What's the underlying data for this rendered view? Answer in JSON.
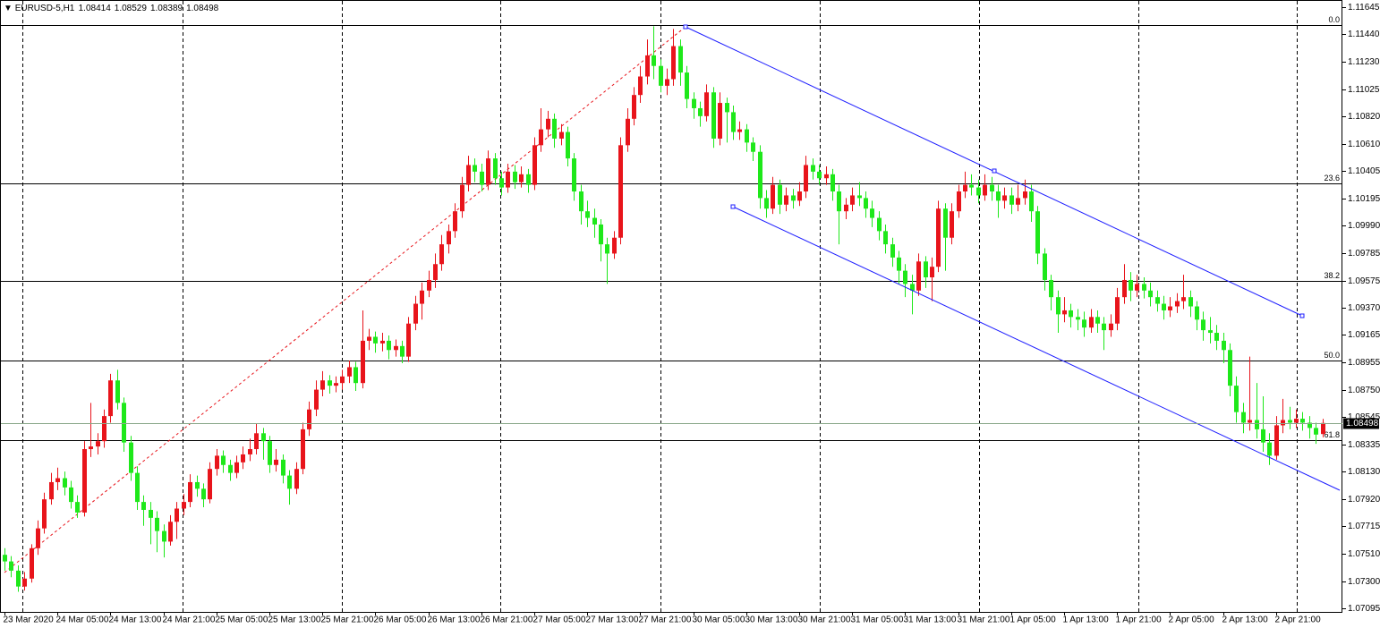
{
  "chart_data": {
    "type": "candlestick",
    "symbol": "EURUSD-5,H1",
    "bull_color": "#e8141b",
    "bear_color": "#1ee81a",
    "ylim": [
      1.07068,
      1.11699
    ],
    "yticks": [
      1.11645,
      {
        "value": 1.1144,
        "label": "1.11440"
      },
      {
        "value": 1.1123,
        "label": "1.11230"
      },
      1.11025,
      {
        "value": 1.1082,
        "label": "1.10820"
      },
      {
        "value": 1.1061,
        "label": "1.10610"
      },
      1.10405,
      1.10195,
      {
        "value": 1.0999,
        "label": "1.09990"
      },
      1.09785,
      1.09575,
      {
        "value": 1.0937,
        "label": "1.09370"
      },
      1.09165,
      1.08955,
      {
        "value": 1.0875,
        "label": "1.08750"
      },
      1.08545,
      1.08335,
      {
        "value": 1.0813,
        "label": "1.08130"
      },
      {
        "value": 1.0792,
        "label": "1.07920"
      },
      1.07715,
      {
        "value": 1.0751,
        "label": "1.07510"
      },
      {
        "value": 1.073,
        "label": "1.07300"
      },
      1.07095
    ],
    "fib_levels": [
      {
        "value": 1.1151,
        "label": "0.0"
      },
      {
        "value": 1.1031,
        "label": "23.6"
      },
      {
        "value": 1.0957,
        "label": "38.2"
      },
      {
        "value": 1.0897,
        "label": "50.0"
      },
      {
        "value": 1.0837,
        "label": "61.8"
      }
    ],
    "categories": [
      "23 Mar 2020",
      null,
      null,
      null,
      null,
      null,
      null,
      null,
      "24 Mar 05:00",
      null,
      null,
      null,
      null,
      null,
      null,
      null,
      "24 Mar 13:00",
      null,
      null,
      null,
      null,
      null,
      null,
      null,
      "24 Mar 21:00",
      null,
      null,
      null,
      null,
      null,
      null,
      null,
      "25 Mar 05:00",
      null,
      null,
      null,
      null,
      null,
      null,
      null,
      "25 Mar 13:00",
      null,
      null,
      null,
      null,
      null,
      null,
      null,
      "25 Mar 21:00",
      null,
      null,
      null,
      null,
      null,
      null,
      null,
      "26 Mar 05:00",
      null,
      null,
      null,
      null,
      null,
      null,
      null,
      "26 Mar 13:00",
      null,
      null,
      null,
      null,
      null,
      null,
      null,
      "26 Mar 21:00",
      null,
      null,
      null,
      null,
      null,
      null,
      null,
      "27 Mar 05:00",
      null,
      null,
      null,
      null,
      null,
      null,
      null,
      "27 Mar 13:00",
      null,
      null,
      null,
      null,
      null,
      null,
      null,
      "27 Mar 21:00",
      null,
      null,
      null,
      null,
      null,
      null,
      null,
      "30 Mar 05:00",
      null,
      null,
      null,
      null,
      null,
      null,
      null,
      "30 Mar 13:00",
      null,
      null,
      null,
      null,
      null,
      null,
      null,
      "30 Mar 21:00",
      null,
      null,
      null,
      null,
      null,
      null,
      null,
      "31 Mar 05:00",
      null,
      null,
      null,
      null,
      null,
      null,
      null,
      "31 Mar 13:00",
      null,
      null,
      null,
      null,
      null,
      null,
      null,
      "31 Mar 21:00",
      null,
      null,
      null,
      null,
      null,
      null,
      null,
      "1 Apr 05:00",
      null,
      null,
      null,
      null,
      null,
      null,
      null,
      "1 Apr 13:00",
      null,
      null,
      null,
      null,
      null,
      null,
      null,
      "1 Apr 21:00",
      null,
      null,
      null,
      null,
      null,
      null,
      null,
      "2 Apr 05:00",
      null,
      null,
      null,
      null,
      null,
      null,
      null,
      "2 Apr 13:00",
      null,
      null,
      null,
      null,
      null,
      null,
      null,
      "2 Apr 21:00",
      null,
      null,
      null,
      null,
      null,
      null,
      null
    ],
    "ohlc": [
      [
        1.075,
        1.0755,
        1.0738,
        1.0745
      ],
      [
        1.0745,
        1.0749,
        1.0733,
        1.0738
      ],
      [
        1.0738,
        1.0742,
        1.0722,
        1.0726
      ],
      [
        1.0726,
        1.0737,
        1.0723,
        1.0732
      ],
      [
        1.0732,
        1.0758,
        1.0729,
        1.0755
      ],
      [
        1.0755,
        1.0776,
        1.075,
        1.077
      ],
      [
        1.077,
        1.0797,
        1.0766,
        1.0792
      ],
      [
        1.0792,
        1.0812,
        1.0788,
        1.0805
      ],
      [
        1.0805,
        1.0816,
        1.0799,
        1.0808
      ],
      [
        1.0808,
        1.0813,
        1.0795,
        1.0801
      ],
      [
        1.0801,
        1.0806,
        1.0785,
        1.079
      ],
      [
        1.079,
        1.0795,
        1.0778,
        1.0782
      ],
      [
        1.0782,
        1.0836,
        1.0779,
        1.083
      ],
      [
        1.083,
        1.0865,
        1.0824,
        1.0832
      ],
      [
        1.0832,
        1.0842,
        1.0826,
        1.0836
      ],
      [
        1.0836,
        1.086,
        1.0831,
        1.0855
      ],
      [
        1.0855,
        1.0887,
        1.085,
        1.0882
      ],
      [
        1.0882,
        1.089,
        1.086,
        1.0865
      ],
      [
        1.0865,
        1.0869,
        1.0828,
        1.0835
      ],
      [
        1.0835,
        1.084,
        1.0806,
        1.0812
      ],
      [
        1.0812,
        1.0817,
        1.0784,
        1.079
      ],
      [
        1.079,
        1.0795,
        1.0772,
        1.0784
      ],
      [
        1.0784,
        1.079,
        1.0758,
        1.0778
      ],
      [
        1.0778,
        1.0783,
        1.0752,
        1.0768
      ],
      [
        1.0768,
        1.0773,
        1.0748,
        1.076
      ],
      [
        1.076,
        1.078,
        1.0757,
        1.0775
      ],
      [
        1.0775,
        1.079,
        1.0762,
        1.0785
      ],
      [
        1.0785,
        1.0796,
        1.078,
        1.079
      ],
      [
        1.079,
        1.0811,
        1.0786,
        1.0805
      ],
      [
        1.0805,
        1.081,
        1.0794,
        1.08
      ],
      [
        1.08,
        1.0804,
        1.0786,
        1.0792
      ],
      [
        1.0792,
        1.082,
        1.0789,
        1.0815
      ],
      [
        1.0815,
        1.083,
        1.081,
        1.0825
      ],
      [
        1.0825,
        1.0829,
        1.0812,
        1.0818
      ],
      [
        1.0818,
        1.0822,
        1.0806,
        1.0812
      ],
      [
        1.0812,
        1.0825,
        1.0808,
        1.082
      ],
      [
        1.082,
        1.0832,
        1.0815,
        1.0826
      ],
      [
        1.0826,
        1.0838,
        1.0821,
        1.083
      ],
      [
        1.083,
        1.0849,
        1.0826,
        1.0842
      ],
      [
        1.0842,
        1.0846,
        1.0822,
        1.0836
      ],
      [
        1.0836,
        1.084,
        1.0812,
        1.0818
      ],
      [
        1.0818,
        1.083,
        1.0813,
        1.0822
      ],
      [
        1.0822,
        1.0826,
        1.0804,
        1.081
      ],
      [
        1.081,
        1.0814,
        1.0788,
        1.08
      ],
      [
        1.08,
        1.082,
        1.0796,
        1.0815
      ],
      [
        1.0815,
        1.085,
        1.0811,
        1.0845
      ],
      [
        1.0845,
        1.0866,
        1.084,
        1.086
      ],
      [
        1.086,
        1.0882,
        1.0855,
        1.0875
      ],
      [
        1.0875,
        1.0889,
        1.087,
        1.0882
      ],
      [
        1.0882,
        1.0886,
        1.0872,
        1.0878
      ],
      [
        1.0878,
        1.0885,
        1.0873,
        1.088
      ],
      [
        1.088,
        1.089,
        1.0875,
        1.0885
      ],
      [
        1.0885,
        1.0897,
        1.088,
        1.0892
      ],
      [
        1.0892,
        1.0896,
        1.0874,
        1.088
      ],
      [
        1.088,
        1.0935,
        1.0876,
        1.0912
      ],
      [
        1.0912,
        1.0921,
        1.0905,
        1.0915
      ],
      [
        1.0915,
        1.0919,
        1.0903,
        1.091
      ],
      [
        1.091,
        1.0918,
        1.0904,
        1.0912
      ],
      [
        1.0912,
        1.0916,
        1.0898,
        1.0905
      ],
      [
        1.0905,
        1.0913,
        1.09,
        1.0908
      ],
      [
        1.0908,
        1.0912,
        1.0895,
        1.09
      ],
      [
        1.09,
        1.093,
        1.0896,
        1.0925
      ],
      [
        1.0925,
        1.0946,
        1.092,
        1.094
      ],
      [
        1.094,
        1.0956,
        1.0928,
        1.095
      ],
      [
        1.095,
        1.0965,
        1.0945,
        1.0958
      ],
      [
        1.0958,
        1.0978,
        1.0952,
        1.097
      ],
      [
        1.097,
        1.0992,
        1.0965,
        1.0985
      ],
      [
        1.0985,
        1.1,
        1.0978,
        1.0995
      ],
      [
        1.0995,
        1.1016,
        1.099,
        1.101
      ],
      [
        1.101,
        1.1036,
        1.1005,
        1.103
      ],
      [
        1.103,
        1.1052,
        1.1025,
        1.1045
      ],
      [
        1.1045,
        1.105,
        1.1032,
        1.104
      ],
      [
        1.104,
        1.1046,
        1.1025,
        1.103
      ],
      [
        1.103,
        1.1056,
        1.1026,
        1.105
      ],
      [
        1.105,
        1.1054,
        1.103,
        1.1035
      ],
      [
        1.1035,
        1.104,
        1.1022,
        1.1028
      ],
      [
        1.1028,
        1.1046,
        1.1024,
        1.104
      ],
      [
        1.104,
        1.1045,
        1.1027,
        1.1032
      ],
      [
        1.1032,
        1.1044,
        1.1028,
        1.1038
      ],
      [
        1.1038,
        1.1042,
        1.1024,
        1.103
      ],
      [
        1.103,
        1.1066,
        1.1026,
        1.106
      ],
      [
        1.106,
        1.1088,
        1.1055,
        1.1072
      ],
      [
        1.1072,
        1.1086,
        1.1066,
        1.108
      ],
      [
        1.108,
        1.1084,
        1.1058,
        1.1065
      ],
      [
        1.1065,
        1.1076,
        1.106,
        1.107
      ],
      [
        1.107,
        1.1074,
        1.1044,
        1.105
      ],
      [
        1.105,
        1.1054,
        1.1018,
        1.1025
      ],
      [
        1.1025,
        1.103,
        1.1,
        1.101
      ],
      [
        1.101,
        1.1018,
        1.0998,
        1.1005
      ],
      [
        1.1005,
        1.1012,
        1.099,
        1.1
      ],
      [
        1.1,
        1.1004,
        1.0972,
        1.0985
      ],
      [
        1.0985,
        1.099,
        1.0955,
        1.0978
      ],
      [
        1.0978,
        1.0995,
        1.0974,
        1.099
      ],
      [
        1.099,
        1.1066,
        1.0985,
        1.106
      ],
      [
        1.106,
        1.1088,
        1.1055,
        1.108
      ],
      [
        1.108,
        1.1104,
        1.1075,
        1.1098
      ],
      [
        1.1098,
        1.112,
        1.1092,
        1.1112
      ],
      [
        1.1112,
        1.114,
        1.1106,
        1.1128
      ],
      [
        1.1128,
        1.115,
        1.111,
        1.112
      ],
      [
        1.112,
        1.1125,
        1.11,
        1.1105
      ],
      [
        1.1105,
        1.1118,
        1.1098,
        1.111
      ],
      [
        1.111,
        1.1148,
        1.1105,
        1.1135
      ],
      [
        1.1135,
        1.114,
        1.1105,
        1.1115
      ],
      [
        1.1115,
        1.112,
        1.1088,
        1.1095
      ],
      [
        1.1095,
        1.11,
        1.108,
        1.1088
      ],
      [
        1.1088,
        1.1093,
        1.1074,
        1.1082
      ],
      [
        1.1082,
        1.1106,
        1.1078,
        1.11
      ],
      [
        1.11,
        1.1104,
        1.1058,
        1.1065
      ],
      [
        1.1065,
        1.11,
        1.106,
        1.1092
      ],
      [
        1.1092,
        1.1096,
        1.1062,
        1.1085
      ],
      [
        1.1085,
        1.109,
        1.1064,
        1.107
      ],
      [
        1.107,
        1.1078,
        1.1064,
        1.1072
      ],
      [
        1.1072,
        1.1076,
        1.1055,
        1.1062
      ],
      [
        1.1062,
        1.1066,
        1.1048,
        1.1055
      ],
      [
        1.1055,
        1.106,
        1.1012,
        1.102
      ],
      [
        1.102,
        1.1026,
        1.1005,
        1.1012
      ],
      [
        1.1012,
        1.1036,
        1.1008,
        1.103
      ],
      [
        1.103,
        1.1034,
        1.1008,
        1.1015
      ],
      [
        1.1015,
        1.1028,
        1.101,
        1.1022
      ],
      [
        1.1022,
        1.1027,
        1.1012,
        1.1018
      ],
      [
        1.1018,
        1.1032,
        1.1014,
        1.1025
      ],
      [
        1.1025,
        1.1052,
        1.102,
        1.1045
      ],
      [
        1.1045,
        1.105,
        1.1034,
        1.104
      ],
      [
        1.104,
        1.1045,
        1.103,
        1.1035
      ],
      [
        1.1035,
        1.1044,
        1.103,
        1.1038
      ],
      [
        1.1038,
        1.1042,
        1.1018,
        1.1025
      ],
      [
        1.1025,
        1.103,
        1.0985,
        1.101
      ],
      [
        1.101,
        1.102,
        1.1004,
        1.1015
      ],
      [
        1.1015,
        1.1028,
        1.101,
        1.1022
      ],
      [
        1.1022,
        1.1032,
        1.1014,
        1.102
      ],
      [
        1.102,
        1.1025,
        1.1005,
        1.1012
      ],
      [
        1.1012,
        1.1018,
        1.0998,
        1.1005
      ],
      [
        1.1005,
        1.101,
        1.0988,
        1.0995
      ],
      [
        1.0995,
        1.1,
        1.0978,
        1.0985
      ],
      [
        1.0985,
        1.099,
        1.0968,
        1.0975
      ],
      [
        1.0975,
        1.098,
        1.0955,
        1.0965
      ],
      [
        1.0965,
        1.097,
        1.0945,
        1.0955
      ],
      [
        1.0955,
        1.0962,
        1.0932,
        1.095
      ],
      [
        1.095,
        1.0978,
        1.0946,
        1.0972
      ],
      [
        1.0972,
        1.0976,
        1.0952,
        1.096
      ],
      [
        1.096,
        1.0975,
        1.0942,
        1.0968
      ],
      [
        1.0968,
        1.1018,
        1.0964,
        1.1012
      ],
      [
        1.1012,
        1.1016,
        1.0965,
        1.099
      ],
      [
        1.099,
        1.1016,
        1.0985,
        1.101
      ],
      [
        1.101,
        1.103,
        1.1005,
        1.1025
      ],
      [
        1.1025,
        1.104,
        1.102,
        1.103
      ],
      [
        1.103,
        1.1038,
        1.1022,
        1.1028
      ],
      [
        1.1028,
        1.1034,
        1.1016,
        1.1022
      ],
      [
        1.1022,
        1.1038,
        1.1018,
        1.103
      ],
      [
        1.103,
        1.1036,
        1.1018,
        1.1025
      ],
      [
        1.1025,
        1.103,
        1.1005,
        1.1018
      ],
      [
        1.1018,
        1.1028,
        1.1012,
        1.1022
      ],
      [
        1.1022,
        1.1028,
        1.1008,
        1.1015
      ],
      [
        1.1015,
        1.103,
        1.101,
        1.102
      ],
      [
        1.102,
        1.1034,
        1.1015,
        1.1025
      ],
      [
        1.1025,
        1.103,
        1.1002,
        1.101
      ],
      [
        1.101,
        1.1014,
        1.097,
        1.0978
      ],
      [
        1.0978,
        1.0982,
        1.095,
        1.0958
      ],
      [
        1.0958,
        1.0962,
        1.0935,
        1.0945
      ],
      [
        1.0945,
        1.095,
        1.0918,
        1.0932
      ],
      [
        1.0932,
        1.0945,
        1.0926,
        1.0935
      ],
      [
        1.0935,
        1.094,
        1.0922,
        1.093
      ],
      [
        1.093,
        1.0936,
        1.092,
        1.0928
      ],
      [
        1.0928,
        1.0934,
        1.0915,
        1.0922
      ],
      [
        1.0922,
        1.0936,
        1.0918,
        1.093
      ],
      [
        1.093,
        1.0935,
        1.0918,
        1.0925
      ],
      [
        1.0925,
        1.093,
        1.0905,
        1.092
      ],
      [
        1.092,
        1.0932,
        1.0915,
        1.0925
      ],
      [
        1.0925,
        1.0952,
        1.092,
        1.0945
      ],
      [
        1.0945,
        1.097,
        1.094,
        1.0958
      ],
      [
        1.0958,
        1.0964,
        1.0942,
        1.095
      ],
      [
        1.095,
        1.0962,
        1.0945,
        1.0955
      ],
      [
        1.0955,
        1.096,
        1.0944,
        1.095
      ],
      [
        1.095,
        1.0956,
        1.0938,
        1.0945
      ],
      [
        1.0945,
        1.095,
        1.0934,
        1.094
      ],
      [
        1.094,
        1.0946,
        1.0928,
        1.0935
      ],
      [
        1.0935,
        1.0945,
        1.093,
        1.0938
      ],
      [
        1.0938,
        1.0948,
        1.0933,
        1.0942
      ],
      [
        1.0942,
        1.0962,
        1.0936,
        1.0945
      ],
      [
        1.0945,
        1.095,
        1.093,
        1.0938
      ],
      [
        1.0938,
        1.0942,
        1.092,
        1.0928
      ],
      [
        1.0928,
        1.0934,
        1.0912,
        1.092
      ],
      [
        1.092,
        1.093,
        1.091,
        1.0918
      ],
      [
        1.0918,
        1.0924,
        1.0905,
        1.0912
      ],
      [
        1.0912,
        1.0918,
        1.0895,
        1.0905
      ],
      [
        1.0905,
        1.091,
        1.087,
        1.0878
      ],
      [
        1.0878,
        1.0885,
        1.085,
        1.0858
      ],
      [
        1.0858,
        1.0865,
        1.0842,
        1.085
      ],
      [
        1.085,
        1.09,
        1.0844,
        1.0852
      ],
      [
        1.0852,
        1.088,
        1.0838,
        1.0845
      ],
      [
        1.0845,
        1.087,
        1.0828,
        1.0835
      ],
      [
        1.0835,
        1.0842,
        1.0818,
        1.0825
      ],
      [
        1.0825,
        1.0855,
        1.0822,
        1.0848
      ],
      [
        1.0848,
        1.0868,
        1.0842,
        1.0852
      ],
      [
        1.0852,
        1.0862,
        1.0845,
        1.085
      ],
      [
        1.085,
        1.086,
        1.0846,
        1.0853
      ],
      [
        1.0853,
        1.0858,
        1.0844,
        1.085
      ],
      [
        1.085,
        1.0855,
        1.0838,
        1.0846
      ],
      [
        1.0846,
        1.085,
        1.0834,
        1.0841
      ],
      [
        1.08414,
        1.08529,
        1.08389,
        1.08498
      ]
    ]
  }
}
